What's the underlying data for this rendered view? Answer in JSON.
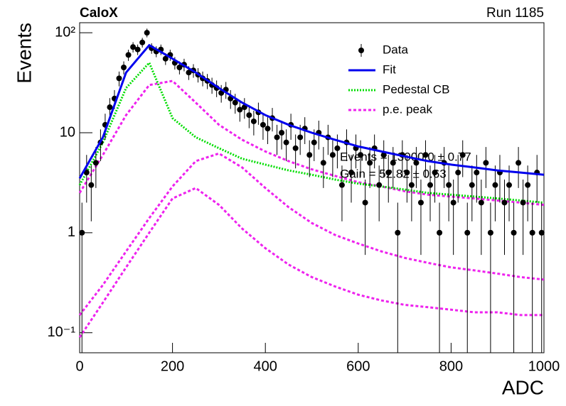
{
  "chart_data": {
    "type": "scatter",
    "title": "CaloX",
    "subtitle": "Run 1185",
    "x_label": "ADC",
    "y_label": "Events",
    "log_y": true,
    "xlim": [
      0,
      1000
    ],
    "ylim": [
      0.063,
      126
    ],
    "xticks": [
      0,
      200,
      400,
      600,
      800,
      1000
    ],
    "yticks": [
      {
        "value": 0.1,
        "label": "10⁻¹"
      },
      1,
      10,
      {
        "value": 100,
        "label": "10²"
      }
    ],
    "annotations": [
      "Events = 13000.0 ± 0.77",
      "Gain = 52.82 ± 0.63"
    ],
    "x": [
      5,
      15,
      25,
      35,
      45,
      55,
      65,
      75,
      85,
      95,
      105,
      115,
      125,
      135,
      145,
      155,
      165,
      175,
      185,
      195,
      205,
      215,
      225,
      235,
      245,
      255,
      265,
      275,
      285,
      295,
      305,
      315,
      325,
      335,
      345,
      355,
      365,
      375,
      385,
      395,
      405,
      415,
      425,
      435,
      445,
      455,
      465,
      475,
      485,
      495,
      505,
      515,
      525,
      535,
      545,
      555,
      565,
      575,
      585,
      595,
      605,
      615,
      625,
      635,
      645,
      655,
      665,
      675,
      685,
      695,
      705,
      715,
      725,
      735,
      745,
      755,
      765,
      775,
      785,
      795,
      805,
      815,
      825,
      835,
      845,
      855,
      865,
      875,
      885,
      895,
      905,
      915,
      925,
      935,
      945,
      955,
      965,
      975,
      985,
      995
    ],
    "curve_x": [
      0,
      50,
      100,
      150,
      200,
      250,
      300,
      350,
      400,
      450,
      500,
      550,
      600,
      650,
      700,
      750,
      800,
      850,
      900,
      950,
      1000
    ],
    "series": [
      {
        "name": "Data",
        "color": "#000000",
        "values": [
          1,
          4,
          3,
          5,
          8,
          12,
          18,
          22,
          35,
          45,
          60,
          72,
          68,
          80,
          100,
          70,
          65,
          68,
          55,
          60,
          50,
          45,
          48,
          40,
          42,
          38,
          35,
          33,
          30,
          28,
          25,
          27,
          22,
          20,
          17,
          18,
          15,
          13,
          16,
          12,
          11,
          14,
          9,
          10,
          8,
          12,
          7,
          9,
          11,
          6,
          8,
          10,
          5,
          9,
          6,
          7,
          3,
          8,
          4,
          7,
          6,
          2,
          5,
          7,
          3,
          6,
          4,
          5,
          1,
          6,
          4,
          3,
          5,
          2,
          6,
          3,
          4,
          1,
          5,
          3,
          2,
          4,
          6,
          1,
          3,
          4,
          2,
          5,
          1,
          3,
          4,
          2,
          3,
          1,
          5,
          2,
          3,
          1,
          4,
          1
        ],
        "errors": [
          1,
          2,
          1.7,
          2.2,
          2.8,
          3.5,
          4.2,
          4.7,
          5.9,
          6.7,
          7.7,
          8.5,
          8.2,
          8.9,
          10,
          8.4,
          8.1,
          8.2,
          7.4,
          7.7,
          7.1,
          6.7,
          6.9,
          6.3,
          6.5,
          6.2,
          5.9,
          5.7,
          5.5,
          5.3,
          5,
          5.2,
          4.7,
          4.5,
          4.1,
          4.2,
          3.9,
          3.6,
          4,
          3.5,
          3.3,
          3.7,
          3,
          3.2,
          2.8,
          3.5,
          2.6,
          3,
          3.3,
          2.4,
          2.8,
          3.2,
          2.2,
          3,
          2.4,
          2.6,
          1.7,
          2.8,
          2,
          2.6,
          2.4,
          1.4,
          2.2,
          2.6,
          1.7,
          2.4,
          2,
          2.2,
          1,
          2.4,
          2,
          1.7,
          2.2,
          1.4,
          2.4,
          1.7,
          2,
          1,
          2.2,
          1.7,
          1.4,
          2,
          2.4,
          1,
          1.7,
          2,
          1.4,
          2.2,
          1,
          1.7,
          2,
          1.4,
          1.7,
          1,
          2.2,
          1.4,
          1.7,
          1,
          2,
          1
        ]
      },
      {
        "name": "Fit",
        "color": "#0000ee",
        "values": [
          3.5,
          9,
          40,
          75,
          55,
          40,
          28,
          20,
          15,
          12,
          10,
          8.5,
          7.3,
          6.5,
          5.8,
          5.2,
          4.8,
          4.5,
          4.2,
          4.0,
          3.8
        ]
      },
      {
        "name": "Pedestal CB",
        "color": "#00dd00",
        "values": [
          3,
          8,
          28,
          50,
          14,
          9,
          7,
          5.5,
          4.8,
          4.2,
          3.8,
          3.4,
          3.1,
          2.9,
          2.7,
          2.5,
          2.4,
          2.3,
          2.2,
          2.1,
          2.0
        ]
      },
      {
        "name": "p.e. peak",
        "color": "#ee22ee",
        "curves": [
          [
            2.5,
            6,
            15,
            30,
            33,
            20,
            12,
            8.5,
            6.5,
            5.2,
            4.3,
            3.7,
            3.2,
            2.9,
            2.6,
            2.4,
            2.3,
            2.2,
            2.1,
            2.0,
            1.9
          ],
          [
            0.15,
            0.3,
            0.65,
            1.4,
            2.9,
            5.2,
            6.2,
            4.5,
            2.8,
            1.8,
            1.25,
            0.95,
            0.78,
            0.65,
            0.56,
            0.5,
            0.45,
            0.42,
            0.39,
            0.36,
            0.34
          ],
          [
            0.09,
            0.2,
            0.45,
            1.0,
            2.2,
            2.8,
            1.9,
            1.1,
            0.7,
            0.48,
            0.36,
            0.29,
            0.24,
            0.21,
            0.19,
            0.18,
            0.17,
            0.16,
            0.16,
            0.15,
            0.15
          ]
        ]
      }
    ]
  }
}
